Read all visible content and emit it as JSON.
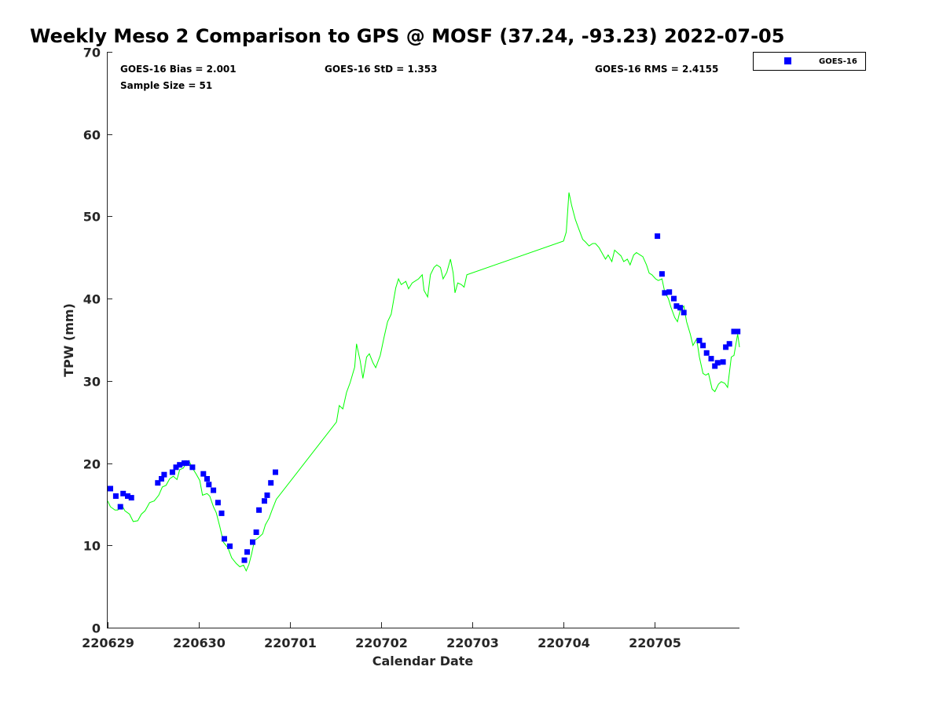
{
  "chart_data": {
    "type": "line",
    "title": "Weekly Meso 2 Comparison to GPS @ MOSF (37.24, -93.23) 2022-07-05",
    "xlabel": "Calendar Date",
    "ylabel": "TPW (mm)",
    "xlim": [
      0,
      6.93
    ],
    "ylim": [
      0,
      70
    ],
    "x_unit": "days since 220629",
    "x_ticks": [
      0,
      1,
      2,
      3,
      4,
      5,
      6
    ],
    "x_tick_labels": [
      "220629",
      "220630",
      "220701",
      "220702",
      "220703",
      "220704",
      "220705"
    ],
    "y_ticks": [
      0,
      10,
      20,
      30,
      40,
      50,
      60,
      70
    ],
    "y_tick_labels": [
      "0",
      "10",
      "20",
      "30",
      "40",
      "50",
      "60",
      "70"
    ],
    "grid": false,
    "legend": {
      "placement": "outside-top-right",
      "entries": [
        "GOES-16"
      ]
    },
    "stats": {
      "bias": "GOES-16 Bias = 2.001",
      "sample": "Sample Size = 51",
      "std": "GOES-16 StD = 1.353",
      "rms": "GOES-16 RMS = 2.4155"
    },
    "series": [
      {
        "name": "GPS",
        "kind": "line",
        "color": "#00ff00",
        "segments": [
          [
            [
              0.0,
              15.4
            ],
            [
              0.03,
              14.7
            ],
            [
              0.08,
              14.3
            ],
            [
              0.11,
              14.3
            ],
            [
              0.16,
              14.8
            ],
            [
              0.19,
              14.2
            ],
            [
              0.24,
              13.8
            ],
            [
              0.28,
              12.9
            ],
            [
              0.33,
              13.0
            ],
            [
              0.37,
              13.8
            ],
            [
              0.41,
              14.2
            ],
            [
              0.46,
              15.2
            ],
            [
              0.51,
              15.4
            ],
            [
              0.56,
              16.1
            ],
            [
              0.6,
              17.1
            ],
            [
              0.64,
              17.3
            ],
            [
              0.68,
              18.1
            ],
            [
              0.72,
              18.4
            ],
            [
              0.76,
              18.0
            ],
            [
              0.79,
              19.2
            ],
            [
              0.83,
              19.4
            ],
            [
              0.85,
              19.8
            ],
            [
              0.89,
              20.3
            ],
            [
              0.93,
              19.4
            ],
            [
              0.97,
              18.7
            ],
            [
              1.01,
              17.9
            ],
            [
              1.04,
              16.1
            ],
            [
              1.09,
              16.3
            ],
            [
              1.12,
              16.0
            ],
            [
              1.16,
              14.7
            ],
            [
              1.19,
              14.0
            ],
            [
              1.23,
              12.3
            ],
            [
              1.27,
              10.4
            ],
            [
              1.32,
              9.7
            ],
            [
              1.36,
              8.5
            ],
            [
              1.41,
              7.8
            ],
            [
              1.45,
              7.4
            ],
            [
              1.49,
              7.6
            ],
            [
              1.52,
              6.9
            ],
            [
              1.55,
              7.7
            ],
            [
              1.58,
              9.0
            ],
            [
              1.61,
              10.6
            ],
            [
              1.65,
              10.9
            ],
            [
              1.7,
              11.4
            ],
            [
              1.73,
              12.5
            ],
            [
              1.77,
              13.3
            ],
            [
              1.8,
              14.2
            ],
            [
              1.85,
              15.6
            ],
            [
              2.51,
              25.0
            ],
            [
              2.54,
              27.0
            ],
            [
              2.58,
              26.6
            ],
            [
              2.62,
              28.6
            ],
            [
              2.66,
              29.8
            ],
            [
              2.71,
              31.7
            ],
            [
              2.73,
              34.5
            ],
            [
              2.77,
              32.4
            ],
            [
              2.8,
              30.3
            ],
            [
              2.84,
              32.9
            ],
            [
              2.87,
              33.3
            ],
            [
              2.91,
              32.2
            ],
            [
              2.94,
              31.6
            ],
            [
              2.99,
              33.1
            ],
            [
              3.03,
              35.2
            ],
            [
              3.07,
              37.2
            ],
            [
              3.11,
              38.1
            ],
            [
              3.16,
              41.3
            ],
            [
              3.19,
              42.4
            ],
            [
              3.22,
              41.7
            ],
            [
              3.27,
              42.1
            ],
            [
              3.3,
              41.2
            ],
            [
              3.34,
              41.9
            ],
            [
              3.41,
              42.4
            ],
            [
              3.45,
              42.9
            ],
            [
              3.47,
              41.0
            ],
            [
              3.51,
              40.2
            ],
            [
              3.54,
              42.9
            ],
            [
              3.58,
              43.8
            ],
            [
              3.61,
              44.1
            ],
            [
              3.65,
              43.8
            ],
            [
              3.68,
              42.4
            ],
            [
              3.72,
              43.2
            ],
            [
              3.76,
              44.8
            ],
            [
              3.79,
              43.1
            ],
            [
              3.81,
              40.7
            ],
            [
              3.84,
              41.9
            ],
            [
              3.88,
              41.7
            ],
            [
              3.91,
              41.4
            ],
            [
              3.94,
              42.9
            ],
            [
              5.0,
              47.0
            ],
            [
              5.03,
              48.1
            ],
            [
              5.06,
              52.9
            ],
            [
              5.09,
              51.3
            ],
            [
              5.13,
              49.6
            ],
            [
              5.17,
              48.4
            ],
            [
              5.21,
              47.2
            ],
            [
              5.24,
              46.9
            ],
            [
              5.28,
              46.4
            ],
            [
              5.32,
              46.7
            ],
            [
              5.35,
              46.7
            ],
            [
              5.39,
              46.2
            ],
            [
              5.42,
              45.6
            ],
            [
              5.46,
              44.8
            ],
            [
              5.49,
              45.3
            ],
            [
              5.53,
              44.5
            ],
            [
              5.56,
              45.9
            ],
            [
              5.59,
              45.6
            ],
            [
              5.63,
              45.2
            ],
            [
              5.66,
              44.5
            ],
            [
              5.7,
              44.8
            ],
            [
              5.73,
              44.1
            ],
            [
              5.77,
              45.3
            ],
            [
              5.8,
              45.6
            ],
            [
              5.84,
              45.3
            ],
            [
              5.87,
              45.1
            ],
            [
              5.91,
              44.1
            ],
            [
              5.94,
              43.1
            ],
            [
              5.97,
              42.9
            ],
            [
              6.01,
              42.4
            ],
            [
              6.04,
              42.2
            ],
            [
              6.08,
              42.4
            ],
            [
              6.11,
              40.8
            ],
            [
              6.15,
              40.0
            ],
            [
              6.18,
              38.9
            ],
            [
              6.22,
              37.7
            ],
            [
              6.25,
              37.2
            ],
            [
              6.28,
              38.6
            ],
            [
              6.32,
              39.1
            ],
            [
              6.35,
              37.2
            ],
            [
              6.39,
              35.7
            ],
            [
              6.42,
              34.3
            ],
            [
              6.46,
              35.1
            ],
            [
              6.49,
              32.9
            ],
            [
              6.53,
              30.9
            ],
            [
              6.56,
              30.7
            ],
            [
              6.59,
              30.9
            ],
            [
              6.63,
              29.0
            ],
            [
              6.66,
              28.7
            ],
            [
              6.7,
              29.6
            ],
            [
              6.73,
              29.9
            ],
            [
              6.77,
              29.7
            ],
            [
              6.8,
              29.2
            ],
            [
              6.84,
              32.9
            ],
            [
              6.87,
              33.1
            ],
            [
              6.91,
              35.7
            ],
            [
              6.93,
              34.1
            ]
          ]
        ]
      },
      {
        "name": "GOES-16",
        "kind": "scatter",
        "color": "#0000ff",
        "points": [
          [
            0.03,
            16.9
          ],
          [
            0.09,
            16.0
          ],
          [
            0.14,
            14.7
          ],
          [
            0.17,
            16.3
          ],
          [
            0.22,
            16.0
          ],
          [
            0.26,
            15.8
          ],
          [
            0.55,
            17.6
          ],
          [
            0.59,
            18.1
          ],
          [
            0.62,
            18.6
          ],
          [
            0.71,
            18.9
          ],
          [
            0.75,
            19.5
          ],
          [
            0.79,
            19.8
          ],
          [
            0.84,
            20.0
          ],
          [
            0.87,
            20.0
          ],
          [
            0.93,
            19.5
          ],
          [
            1.05,
            18.7
          ],
          [
            1.09,
            18.1
          ],
          [
            1.11,
            17.4
          ],
          [
            1.16,
            16.7
          ],
          [
            1.21,
            15.2
          ],
          [
            1.25,
            13.9
          ],
          [
            1.28,
            10.8
          ],
          [
            1.34,
            9.9
          ],
          [
            1.5,
            8.2
          ],
          [
            1.53,
            9.2
          ],
          [
            1.59,
            10.4
          ],
          [
            1.63,
            11.6
          ],
          [
            1.66,
            14.3
          ],
          [
            1.72,
            15.4
          ],
          [
            1.75,
            16.1
          ],
          [
            1.79,
            17.6
          ],
          [
            1.84,
            18.9
          ],
          [
            6.03,
            47.6
          ],
          [
            6.08,
            43.0
          ],
          [
            6.11,
            40.7
          ],
          [
            6.16,
            40.8
          ],
          [
            6.21,
            40.0
          ],
          [
            6.24,
            39.1
          ],
          [
            6.28,
            38.9
          ],
          [
            6.32,
            38.3
          ],
          [
            6.49,
            34.9
          ],
          [
            6.53,
            34.3
          ],
          [
            6.57,
            33.4
          ],
          [
            6.62,
            32.7
          ],
          [
            6.66,
            31.8
          ],
          [
            6.69,
            32.2
          ],
          [
            6.75,
            32.3
          ],
          [
            6.78,
            34.1
          ],
          [
            6.82,
            34.5
          ],
          [
            6.87,
            36.0
          ],
          [
            6.91,
            36.0
          ]
        ]
      }
    ]
  }
}
